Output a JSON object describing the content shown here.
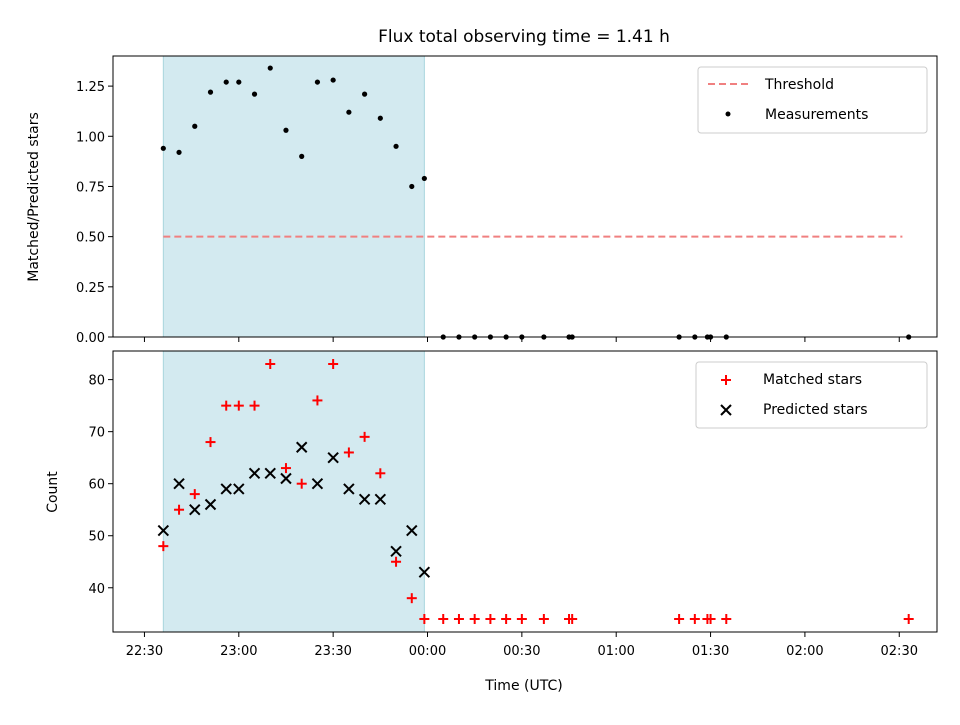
{
  "chart_data": [
    {
      "type": "scatter",
      "title": "Flux total observing time = 1.41 h",
      "xlabel": "",
      "ylabel": "Matched/Predicted stars",
      "ylim": [
        0,
        1.4
      ],
      "yticks": [
        0.0,
        0.25,
        0.5,
        0.75,
        1.0,
        1.25
      ],
      "ytick_labels": [
        "0.00",
        "0.25",
        "0.50",
        "0.75",
        "1.00",
        "1.25"
      ],
      "xlim": [
        "22:20",
        "02:42"
      ],
      "xticks": [
        "22:30",
        "23:00",
        "23:30",
        "00:00",
        "00:30",
        "01:00",
        "01:30",
        "02:00",
        "02:30"
      ],
      "observing_window": [
        "22:36",
        "23:59"
      ],
      "observing_window_color": "#d3eaf0",
      "legend_position": "top-right",
      "series": [
        {
          "name": "Threshold",
          "style": "dashed-line",
          "color": "#f08080",
          "x": [
            "22:36",
            "02:31"
          ],
          "y": [
            0.5,
            0.5
          ]
        },
        {
          "name": "Measurements",
          "style": "dot",
          "color": "#000000",
          "x": [
            "22:36",
            "22:41",
            "22:46",
            "22:51",
            "22:56",
            "23:00",
            "23:05",
            "23:10",
            "23:15",
            "23:20",
            "23:25",
            "23:30",
            "23:35",
            "23:40",
            "23:45",
            "23:50",
            "23:55",
            "23:59",
            "00:05",
            "00:10",
            "00:15",
            "00:20",
            "00:25",
            "00:30",
            "00:37",
            "00:45",
            "00:46",
            "01:20",
            "01:25",
            "01:29",
            "01:30",
            "01:35",
            "02:33"
          ],
          "y": [
            0.94,
            0.92,
            1.05,
            1.22,
            1.27,
            1.27,
            1.21,
            1.34,
            1.03,
            0.9,
            1.27,
            1.28,
            1.12,
            1.21,
            1.09,
            0.95,
            0.75,
            0.79,
            0,
            0,
            0,
            0,
            0,
            0,
            0,
            0,
            0,
            0,
            0,
            0,
            0,
            0,
            0
          ]
        }
      ]
    },
    {
      "type": "scatter",
      "title": "",
      "xlabel": "Time (UTC)",
      "ylabel": "Count",
      "ylim": [
        31.5,
        85.5
      ],
      "yticks": [
        40,
        50,
        60,
        70,
        80
      ],
      "ytick_labels": [
        "40",
        "50",
        "60",
        "70",
        "80"
      ],
      "xlim": [
        "22:20",
        "02:42"
      ],
      "xticks": [
        "22:30",
        "23:00",
        "23:30",
        "00:00",
        "00:30",
        "01:00",
        "01:30",
        "02:00",
        "02:30"
      ],
      "observing_window": [
        "22:36",
        "23:59"
      ],
      "legend_position": "top-right",
      "series": [
        {
          "name": "Matched stars",
          "style": "plus",
          "color": "#ff0000",
          "x": [
            "22:36",
            "22:41",
            "22:46",
            "22:51",
            "22:56",
            "23:00",
            "23:05",
            "23:10",
            "23:15",
            "23:20",
            "23:25",
            "23:30",
            "23:35",
            "23:40",
            "23:45",
            "23:50",
            "23:55",
            "23:59",
            "00:05",
            "00:10",
            "00:15",
            "00:20",
            "00:25",
            "00:30",
            "00:37",
            "00:45",
            "00:46",
            "01:20",
            "01:25",
            "01:29",
            "01:30",
            "01:35",
            "02:33"
          ],
          "y": [
            48,
            55,
            58,
            68,
            75,
            75,
            75,
            83,
            63,
            60,
            76,
            83,
            66,
            69,
            62,
            45,
            38,
            34,
            34,
            34,
            34,
            34,
            34,
            34,
            34,
            34,
            34,
            34,
            34,
            34,
            34,
            34,
            34
          ]
        },
        {
          "name": "Predicted stars",
          "style": "x",
          "color": "#000000",
          "x": [
            "22:36",
            "22:41",
            "22:46",
            "22:51",
            "22:56",
            "23:00",
            "23:05",
            "23:10",
            "23:15",
            "23:20",
            "23:25",
            "23:30",
            "23:35",
            "23:40",
            "23:45",
            "23:50",
            "23:55",
            "23:59"
          ],
          "y": [
            51,
            60,
            55,
            56,
            59,
            59,
            62,
            62,
            61,
            67,
            60,
            65,
            59,
            57,
            57,
            47,
            51,
            43
          ]
        }
      ]
    }
  ]
}
